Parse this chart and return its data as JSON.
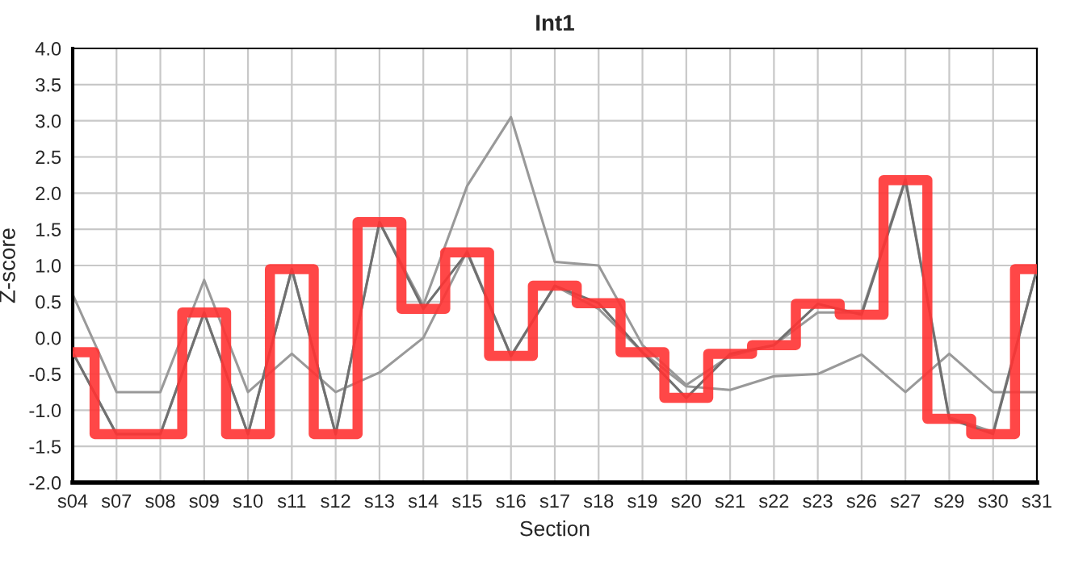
{
  "chart_data": {
    "type": "line",
    "title": "Int1",
    "xlabel": "Section",
    "ylabel": "Z-score",
    "categories": [
      "s04",
      "s07",
      "s08",
      "s09",
      "s10",
      "s11",
      "s12",
      "s13",
      "s14",
      "s15",
      "s16",
      "s17",
      "s18",
      "s19",
      "s20",
      "s21",
      "s22",
      "s23",
      "s26",
      "s27",
      "s29",
      "s30",
      "s31"
    ],
    "series": [
      {
        "color": "#999999",
        "values": [
          0.6,
          -0.75,
          -0.75,
          0.8,
          -0.75,
          -0.22,
          -0.75,
          -0.48,
          0.0,
          1.2,
          -0.25,
          0.72,
          0.4,
          -0.2,
          -0.67,
          -0.72,
          -0.53,
          -0.5,
          -0.23,
          -0.75,
          -0.22,
          -0.75,
          -0.75
        ]
      },
      {
        "color": "#999999",
        "values": [
          -0.2,
          -1.33,
          -1.33,
          0.35,
          -1.33,
          0.95,
          -1.33,
          1.6,
          0.45,
          2.1,
          3.05,
          1.05,
          1.0,
          -0.1,
          -0.65,
          -0.25,
          -0.1,
          0.35,
          0.35,
          2.2,
          -1.1,
          -1.3,
          0.95
        ]
      },
      {
        "color": "#707070",
        "values": [
          -0.2,
          -1.33,
          -1.33,
          0.35,
          -1.33,
          0.95,
          -1.33,
          1.6,
          0.4,
          1.18,
          -0.25,
          0.72,
          0.48,
          -0.2,
          -0.83,
          -0.22,
          -0.1,
          0.47,
          0.32,
          2.18,
          -1.12,
          -1.33,
          0.95
        ]
      },
      {
        "type": "step",
        "color": "#ff3333",
        "values": [
          -0.2,
          -1.33,
          -1.33,
          0.35,
          -1.33,
          0.95,
          -1.33,
          1.6,
          0.4,
          1.18,
          -0.25,
          0.72,
          0.48,
          -0.2,
          -0.83,
          -0.22,
          -0.1,
          0.47,
          0.32,
          2.18,
          -1.12,
          -1.33,
          0.95
        ]
      }
    ],
    "ylim": [
      -2.0,
      4.0
    ],
    "yticks": [
      {
        "value": -2,
        "label": "-2.0"
      },
      {
        "value": -1.5,
        "label": "-1.5"
      },
      {
        "value": -1,
        "label": "-1.0"
      },
      {
        "value": -0.5,
        "label": "-0.5"
      },
      {
        "value": 0,
        "label": "0.0"
      },
      {
        "value": 0.5,
        "label": "0.5"
      },
      {
        "value": 1,
        "label": "1.0"
      },
      {
        "value": 1.5,
        "label": "1.5"
      },
      {
        "value": 2,
        "label": "2.0"
      },
      {
        "value": 2.5,
        "label": "2.5"
      },
      {
        "value": 3,
        "label": "3.0"
      },
      {
        "value": 3.5,
        "label": "3.5"
      },
      {
        "value": 4,
        "label": "4.0"
      }
    ],
    "grid": true,
    "legend": false
  }
}
